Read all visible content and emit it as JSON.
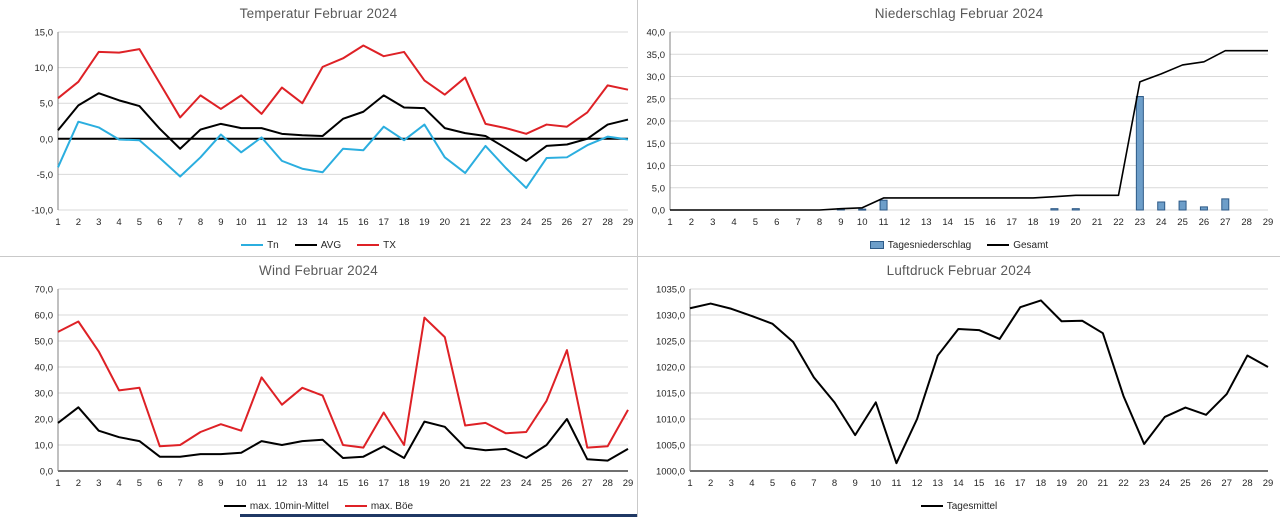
{
  "days": [
    1,
    2,
    3,
    4,
    5,
    6,
    7,
    8,
    9,
    10,
    11,
    12,
    13,
    14,
    15,
    16,
    17,
    18,
    19,
    20,
    21,
    22,
    23,
    24,
    25,
    26,
    27,
    28,
    29
  ],
  "style": {
    "grid_color": "#d9d9d9",
    "axis_color": "#808080",
    "dark_axis_color": "#1a1a1a",
    "title_color": "#595959",
    "tick_color": "#262626",
    "divider_color": "#c9c9c9",
    "bottom_strip_color": "#1f3864"
  },
  "chart_data": [
    {
      "type": "line",
      "title": "Temperatur Februar 2024",
      "xlabel": "",
      "ylabel": "",
      "ylim": [
        -10,
        15
      ],
      "ystep": 5,
      "zero_line": true,
      "bottom_axis": "light",
      "legend_position": "bottom",
      "grid": true,
      "series": [
        {
          "name": "Tn",
          "kind": "line",
          "color": "#2baedf",
          "width": 2,
          "values": [
            -4.0,
            2.4,
            1.6,
            -0.1,
            -0.2,
            -2.7,
            -5.3,
            -2.6,
            0.6,
            -1.9,
            0.2,
            -3.1,
            -4.2,
            -4.7,
            -1.4,
            -1.6,
            1.7,
            -0.2,
            2.0,
            -2.6,
            -4.8,
            -1.0,
            -4.1,
            -6.9,
            -2.7,
            -2.6,
            -0.9,
            0.3,
            -0.1
          ]
        },
        {
          "name": "AVG",
          "kind": "line",
          "color": "#000000",
          "width": 2,
          "values": [
            1.2,
            4.7,
            6.4,
            5.4,
            4.6,
            1.4,
            -1.4,
            1.3,
            2.1,
            1.5,
            1.5,
            0.7,
            0.5,
            0.4,
            2.8,
            3.8,
            6.1,
            4.4,
            4.3,
            1.5,
            0.8,
            0.4,
            -1.3,
            -3.1,
            -1.0,
            -0.8,
            0.0,
            2.0,
            2.7
          ]
        },
        {
          "name": "TX",
          "kind": "line",
          "color": "#de2126",
          "width": 2,
          "values": [
            5.7,
            8.0,
            12.2,
            12.1,
            12.6,
            7.8,
            3.0,
            6.1,
            4.2,
            6.1,
            3.5,
            7.2,
            5.0,
            10.1,
            11.3,
            13.1,
            11.6,
            12.2,
            8.2,
            6.2,
            8.6,
            2.1,
            1.5,
            0.7,
            2.0,
            1.7,
            3.7,
            7.5,
            6.9
          ]
        }
      ]
    },
    {
      "type": "bar",
      "title": "Niederschlag Februar 2024",
      "xlabel": "",
      "ylabel": "",
      "ylim": [
        0,
        40
      ],
      "ystep": 5,
      "zero_line": false,
      "bottom_axis": "light",
      "legend_position": "bottom",
      "grid": true,
      "series": [
        {
          "name": "Tagesniederschlag",
          "kind": "bar",
          "color": "#6d9ec9",
          "border": "#2e5a87",
          "values": [
            0,
            0,
            0,
            0,
            0,
            0,
            0,
            0,
            0.3,
            0.2,
            2.2,
            0,
            0,
            0,
            0,
            0,
            0,
            0,
            0.3,
            0.3,
            0,
            0,
            25.5,
            1.8,
            2.0,
            0.7,
            2.5,
            0,
            0
          ]
        },
        {
          "name": "Gesamt",
          "kind": "line",
          "color": "#000000",
          "width": 1.6,
          "values": [
            0,
            0,
            0,
            0,
            0,
            0,
            0,
            0,
            0.3,
            0.5,
            2.7,
            2.7,
            2.7,
            2.7,
            2.7,
            2.7,
            2.7,
            2.7,
            3.0,
            3.3,
            3.3,
            3.3,
            28.8,
            30.6,
            32.6,
            33.3,
            35.8,
            35.8,
            35.8
          ]
        }
      ]
    },
    {
      "type": "line",
      "title": "Wind Februar 2024",
      "xlabel": "",
      "ylabel": "",
      "ylim": [
        0,
        70
      ],
      "ystep": 10,
      "zero_line": false,
      "bottom_axis": "dark",
      "legend_position": "bottom",
      "grid": true,
      "series": [
        {
          "name": "max. 10min-Mittel",
          "kind": "line",
          "color": "#000000",
          "width": 2,
          "values": [
            18.5,
            24.5,
            15.5,
            13.0,
            11.5,
            5.5,
            5.5,
            6.5,
            6.5,
            7.0,
            11.5,
            10.0,
            11.5,
            12.0,
            5.0,
            5.5,
            9.5,
            5.0,
            19.0,
            17.0,
            9.0,
            8.0,
            8.5,
            5.0,
            10.0,
            20.0,
            4.5,
            4.0,
            8.5
          ]
        },
        {
          "name": "max. Böe",
          "kind": "line",
          "color": "#de2126",
          "width": 2,
          "values": [
            53.5,
            57.5,
            46.0,
            31.0,
            32.0,
            9.5,
            10.0,
            15.0,
            18.0,
            15.5,
            36.0,
            25.5,
            32.0,
            29.0,
            10.0,
            9.0,
            22.5,
            10.0,
            59.0,
            51.5,
            17.5,
            18.5,
            14.5,
            15.0,
            27.0,
            46.5,
            9.0,
            9.5,
            23.5
          ]
        }
      ]
    },
    {
      "type": "line",
      "title": "Luftdruck Februar 2024",
      "xlabel": "",
      "ylabel": "",
      "ylim": [
        1000,
        1035
      ],
      "ystep": 5,
      "zero_line": false,
      "bottom_axis": "dark",
      "legend_position": "bottom",
      "grid": true,
      "series": [
        {
          "name": "Tagesmittel",
          "kind": "line",
          "color": "#000000",
          "width": 2,
          "values": [
            1031.3,
            1032.2,
            1031.2,
            1029.8,
            1028.3,
            1024.8,
            1018.0,
            1013.2,
            1006.9,
            1013.2,
            1001.5,
            1010.0,
            1022.2,
            1027.3,
            1027.1,
            1025.4,
            1031.5,
            1032.8,
            1028.8,
            1028.9,
            1026.5,
            1014.4,
            1005.2,
            1010.4,
            1012.2,
            1010.8,
            1014.8,
            1022.2,
            1020.0
          ]
        }
      ]
    }
  ]
}
